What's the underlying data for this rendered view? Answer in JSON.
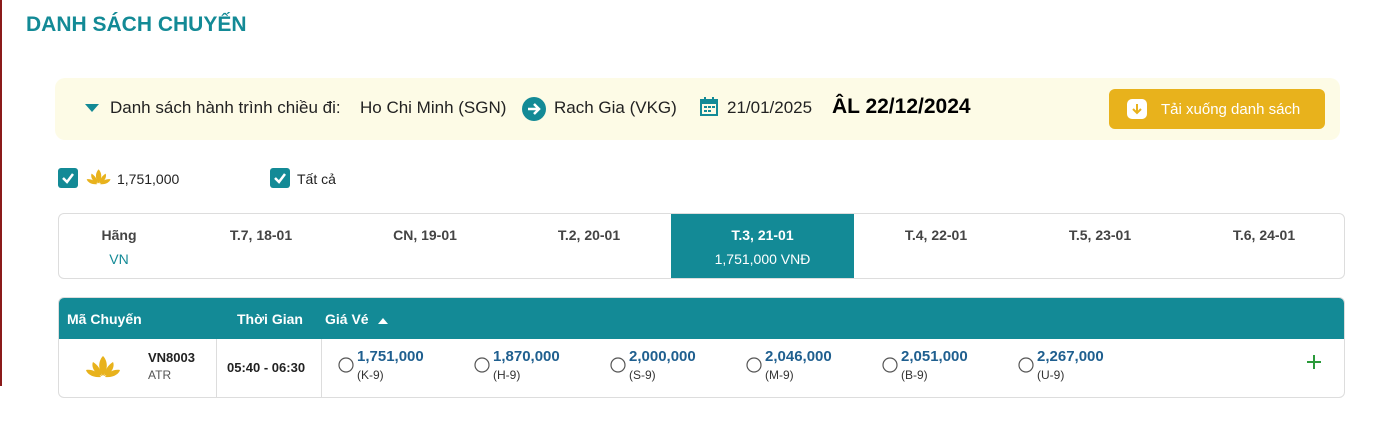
{
  "header": {
    "title": "DANH SÁCH CHUYẾN"
  },
  "route": {
    "label": "Danh sách hành trình chiều đi:",
    "origin": "Ho Chi Minh (SGN)",
    "destination": "Rach Gia (VKG)",
    "date": "21/01/2025",
    "lunar_date": "ÂL 22/12/2024",
    "download_button": "Tải xuống danh sách"
  },
  "filters": [
    {
      "label": "1,751,000"
    },
    {
      "label": "Tất cả"
    }
  ],
  "date_tabs": {
    "airline_header": "Hãng",
    "airline": "VN",
    "days": [
      {
        "label": "T.7, 18-01"
      },
      {
        "label": "CN, 19-01"
      },
      {
        "label": "T.2, 20-01"
      },
      {
        "label": "T.3, 21-01",
        "price": "1,751,000 VNĐ"
      },
      {
        "label": "T.4, 22-01"
      },
      {
        "label": "T.5, 23-01"
      },
      {
        "label": "T.6, 24-01"
      }
    ]
  },
  "table": {
    "columns": [
      "Mã Chuyến",
      "Thời Gian",
      "Giá Vé"
    ],
    "rows": [
      {
        "flight": "VN8003",
        "aircraft": "ATR",
        "time": "05:40 - 06:30",
        "fares": [
          {
            "price": "1,751,000",
            "class": "(K-9)"
          },
          {
            "price": "1,870,000",
            "class": "(H-9)"
          },
          {
            "price": "2,000,000",
            "class": "(S-9)"
          },
          {
            "price": "2,046,000",
            "class": "(M-9)"
          },
          {
            "price": "2,051,000",
            "class": "(B-9)"
          },
          {
            "price": "2,267,000",
            "class": "(U-9)"
          }
        ]
      }
    ]
  }
}
